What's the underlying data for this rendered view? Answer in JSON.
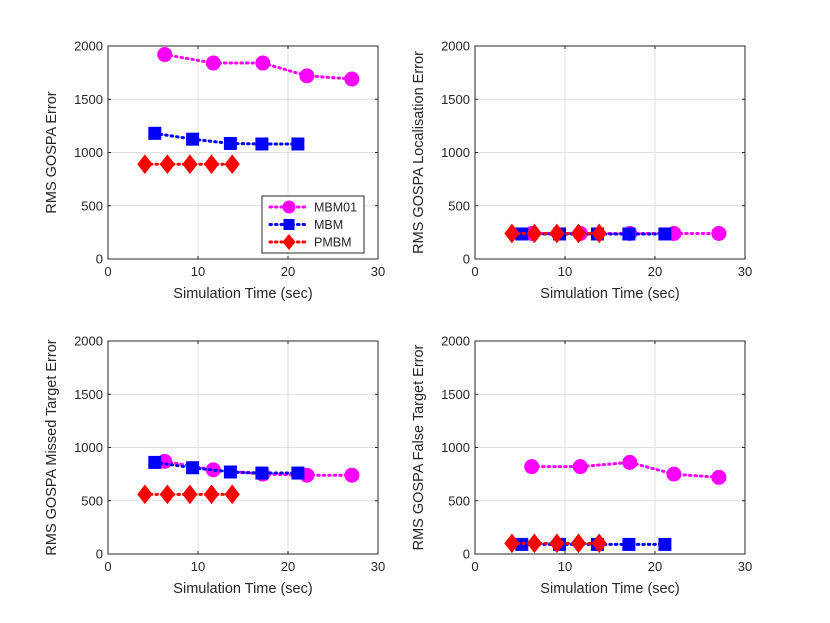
{
  "chart_data": [
    {
      "type": "line",
      "xlabel": "Simulation Time (sec)",
      "ylabel": "RMS GOSPA Error",
      "xlim": [
        0,
        30
      ],
      "ylim": [
        0,
        2000
      ],
      "xticks": [
        "0",
        "10",
        "20",
        "30"
      ],
      "yticks": [
        "0",
        "500",
        "1000",
        "1500",
        "2000"
      ],
      "grid": true,
      "legend": "bottom-right",
      "series": [
        {
          "name": "MBM01",
          "color": "#ff00ff",
          "marker": "circle",
          "x": [
            6.3,
            11.7,
            17.2,
            22.1,
            27.1
          ],
          "y": [
            1920,
            1840,
            1840,
            1720,
            1690
          ]
        },
        {
          "name": "MBM",
          "color": "#0000ff",
          "marker": "square",
          "x": [
            5.2,
            9.4,
            13.6,
            17.1,
            21.1
          ],
          "y": [
            1180,
            1125,
            1085,
            1080,
            1080
          ]
        },
        {
          "name": "PMBM",
          "color": "#ff0000",
          "marker": "diamond",
          "x": [
            4.1,
            6.6,
            9.1,
            11.5,
            13.8
          ],
          "y": [
            890,
            890,
            890,
            890,
            890
          ]
        }
      ]
    },
    {
      "type": "line",
      "xlabel": "Simulation Time (sec)",
      "ylabel": "RMS GOSPA Localisation Error",
      "xlim": [
        0,
        30
      ],
      "ylim": [
        0,
        2000
      ],
      "xticks": [
        "0",
        "10",
        "20",
        "30"
      ],
      "yticks": [
        "0",
        "500",
        "1000",
        "1500",
        "2000"
      ],
      "grid": true,
      "series": [
        {
          "name": "MBM01",
          "color": "#ff00ff",
          "marker": "circle",
          "x": [
            6.3,
            11.7,
            17.2,
            22.1,
            27.1
          ],
          "y": [
            240,
            240,
            240,
            240,
            240
          ]
        },
        {
          "name": "MBM",
          "color": "#0000ff",
          "marker": "square",
          "x": [
            5.2,
            9.4,
            13.6,
            17.1,
            21.1
          ],
          "y": [
            235,
            235,
            235,
            235,
            235
          ]
        },
        {
          "name": "PMBM",
          "color": "#ff0000",
          "marker": "diamond",
          "x": [
            4.1,
            6.6,
            9.1,
            11.5,
            13.8
          ],
          "y": [
            240,
            240,
            240,
            240,
            240
          ]
        }
      ]
    },
    {
      "type": "line",
      "xlabel": "Simulation Time (sec)",
      "ylabel": "RMS GOSPA Missed Target Error",
      "xlim": [
        0,
        30
      ],
      "ylim": [
        0,
        2000
      ],
      "xticks": [
        "0",
        "10",
        "20",
        "30"
      ],
      "yticks": [
        "0",
        "500",
        "1000",
        "1500",
        "2000"
      ],
      "grid": true,
      "series": [
        {
          "name": "MBM01",
          "color": "#ff00ff",
          "marker": "circle",
          "x": [
            6.3,
            11.7,
            17.2,
            22.1,
            27.1
          ],
          "y": [
            870,
            790,
            750,
            740,
            740
          ]
        },
        {
          "name": "MBM",
          "color": "#0000ff",
          "marker": "square",
          "x": [
            5.2,
            9.4,
            13.6,
            17.1,
            21.1
          ],
          "y": [
            860,
            810,
            770,
            760,
            760
          ]
        },
        {
          "name": "PMBM",
          "color": "#ff0000",
          "marker": "diamond",
          "x": [
            4.1,
            6.6,
            9.1,
            11.5,
            13.8
          ],
          "y": [
            560,
            560,
            560,
            560,
            560
          ]
        }
      ]
    },
    {
      "type": "line",
      "xlabel": "Simulation Time (sec)",
      "ylabel": "RMS GOSPA False Target Error",
      "xlim": [
        0,
        30
      ],
      "ylim": [
        0,
        2000
      ],
      "xticks": [
        "0",
        "10",
        "20",
        "30"
      ],
      "yticks": [
        "0",
        "500",
        "1000",
        "1500",
        "2000"
      ],
      "grid": true,
      "series": [
        {
          "name": "MBM01",
          "color": "#ff00ff",
          "marker": "circle",
          "x": [
            6.3,
            11.7,
            17.2,
            22.1,
            27.1
          ],
          "y": [
            820,
            820,
            860,
            750,
            720
          ]
        },
        {
          "name": "MBM",
          "color": "#0000ff",
          "marker": "square",
          "x": [
            5.2,
            9.4,
            13.6,
            17.1,
            21.1
          ],
          "y": [
            90,
            90,
            90,
            90,
            90
          ]
        },
        {
          "name": "PMBM",
          "color": "#ff0000",
          "marker": "diamond",
          "x": [
            4.1,
            6.6,
            9.1,
            11.5,
            13.8
          ],
          "y": [
            100,
            100,
            100,
            100,
            100
          ]
        }
      ]
    }
  ]
}
